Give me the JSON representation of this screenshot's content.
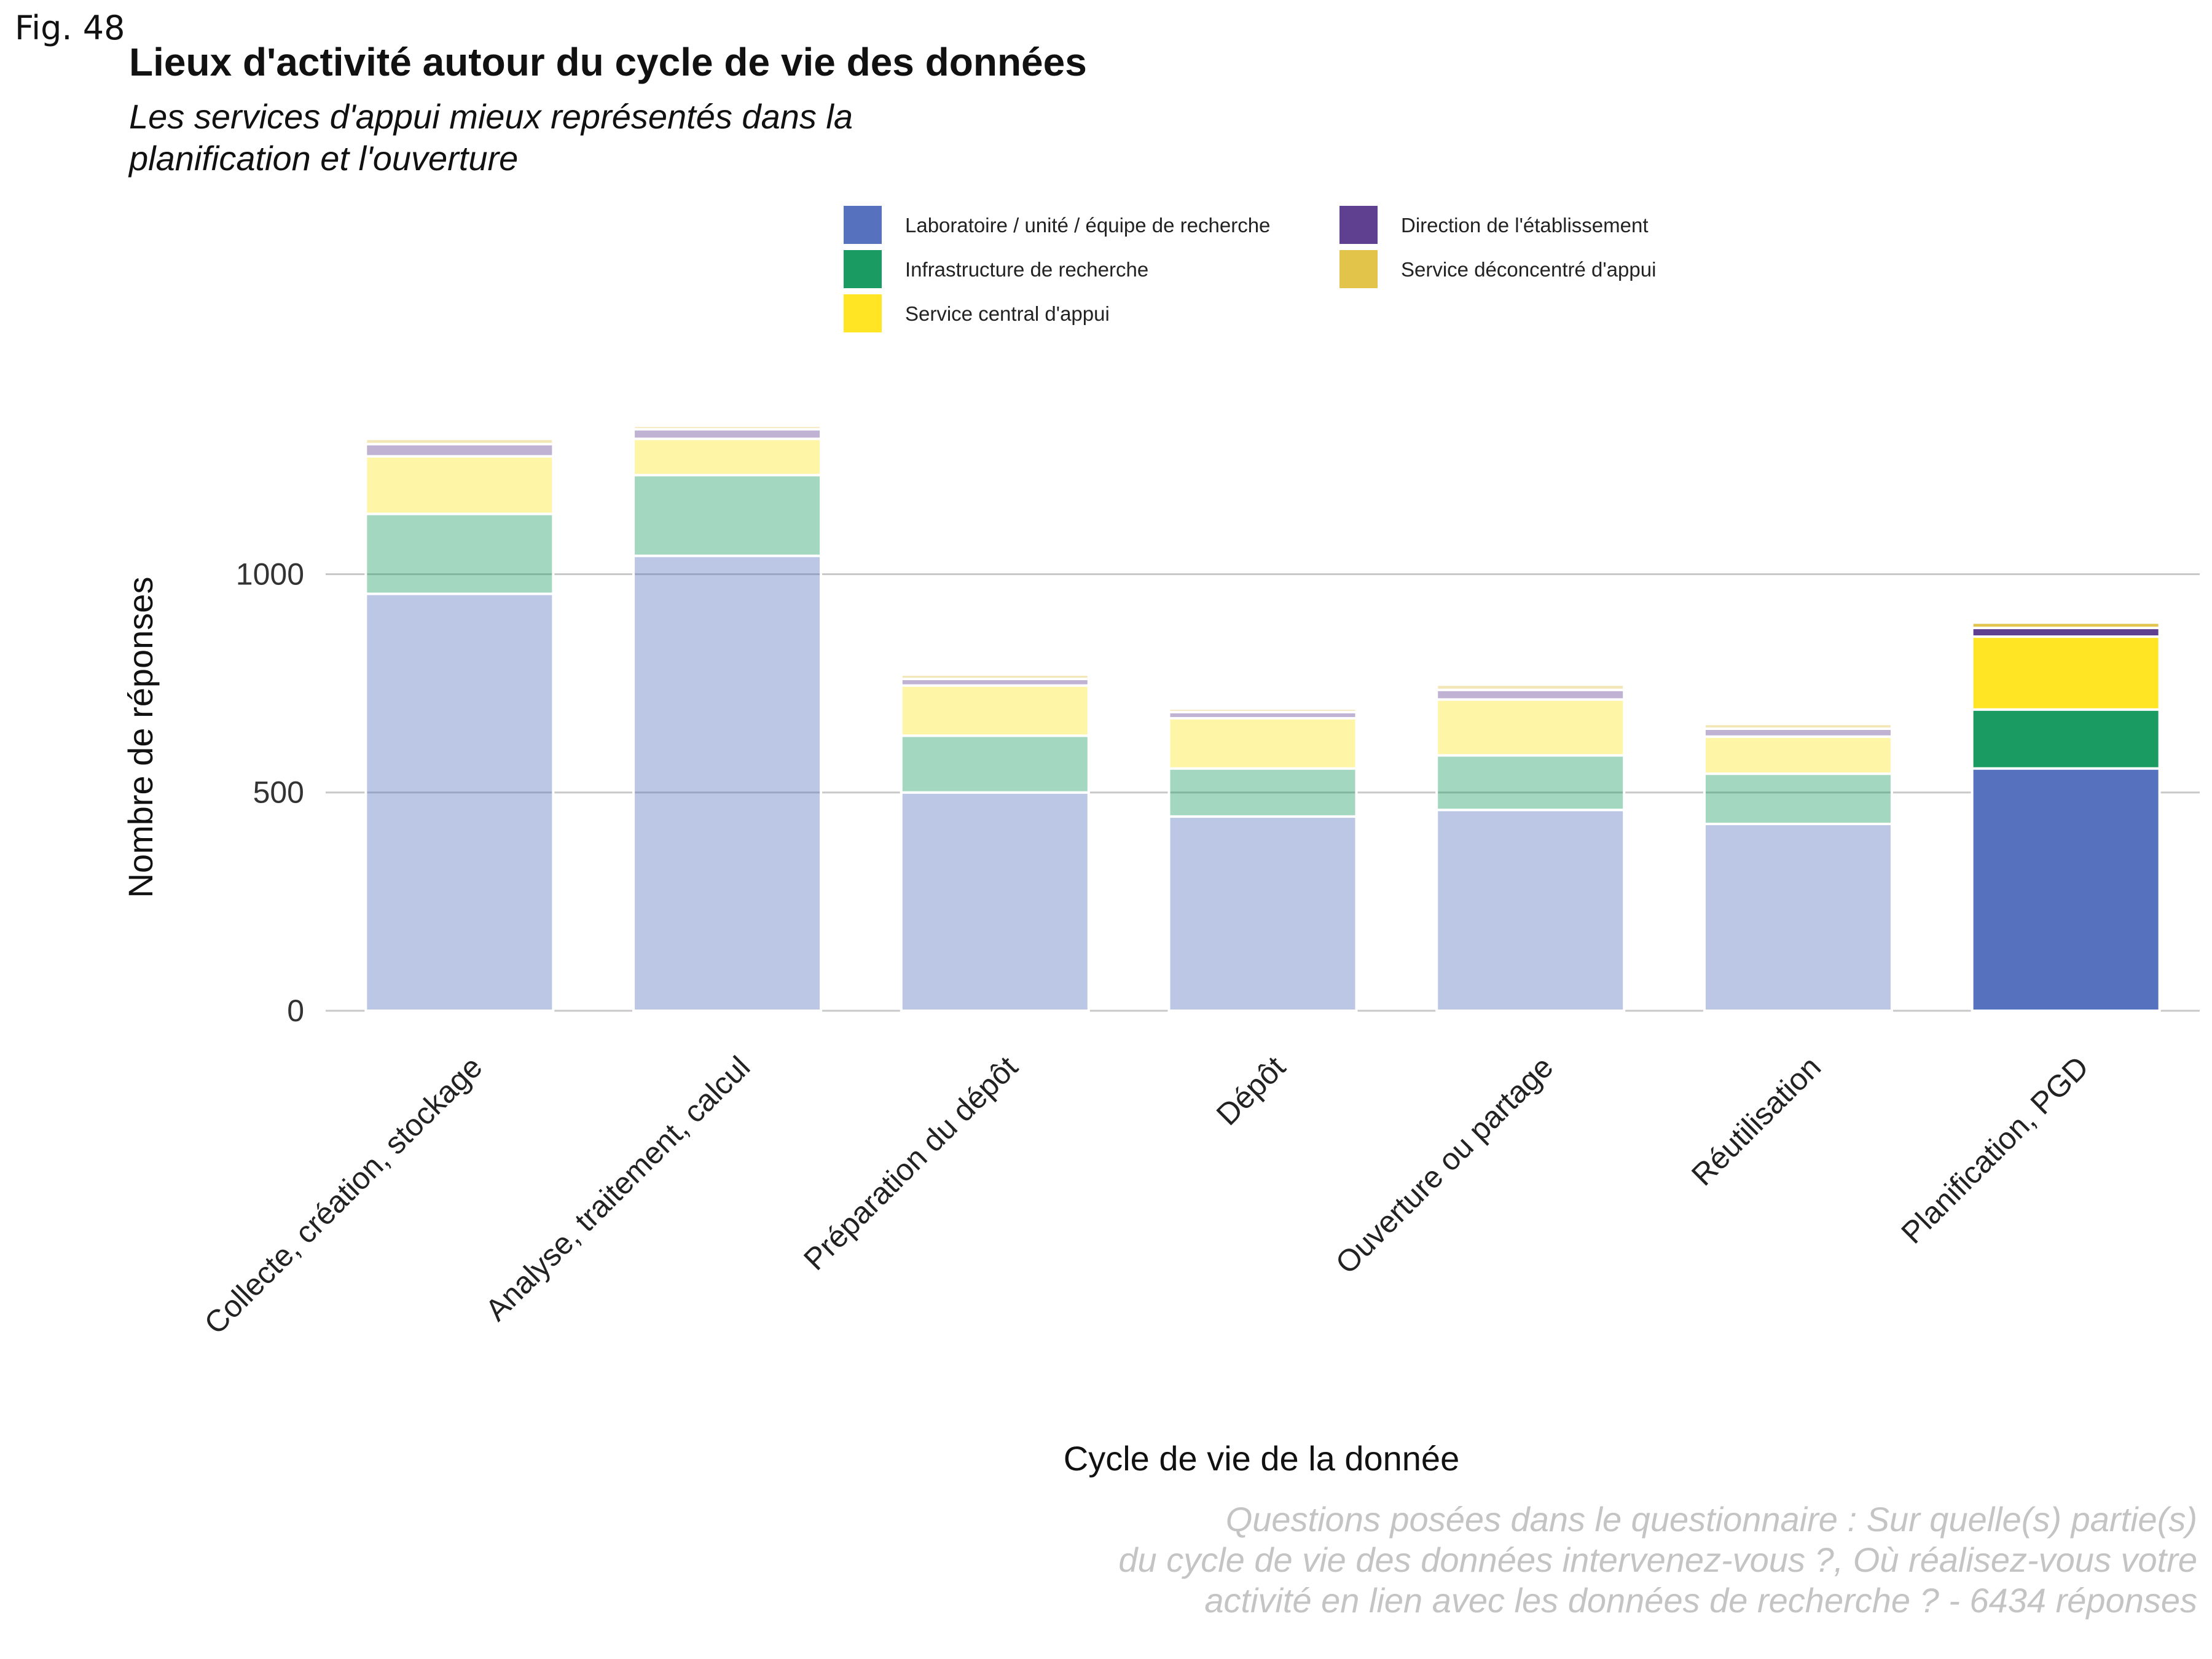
{
  "figure_label": "Fig. 48",
  "chart_data": {
    "type": "bar",
    "stacked": true,
    "title": "Lieux d'activité autour du cycle de vie des données",
    "subtitle": "Les services d'appui mieux représentés dans la\nplanification et l'ouverture",
    "xlabel": "Cycle de vie de la donnée",
    "ylabel": "Nombre de réponses",
    "caption": "Questions posées dans le questionnaire : Sur quelle(s) partie(s)\ndu cycle de vie des données intervenez-vous ?, Où réalisez-vous votre\nactivité en lien avec les données de recherche ? - 6434 réponses",
    "ylim": [
      0,
      1330
    ],
    "yticks": [
      0,
      500,
      1000
    ],
    "grid": "horizontal",
    "legend_position": "top",
    "highlighted_category": "Planification, PGD",
    "categories": [
      "Collecte, création, stockage",
      "Analyse, traitement, calcul",
      "Préparation du dépôt",
      "Dépôt",
      "Ouverture ou partage",
      "Réutilisation",
      "Planification, PGD"
    ],
    "series": [
      {
        "name": "Laboratoire / unité / équipe de recherche",
        "color": "#5672be",
        "values": [
          955,
          1042,
          500,
          445,
          460,
          428,
          555
        ]
      },
      {
        "name": "Infrastructure de recherche",
        "color": "#1a9b62",
        "values": [
          183,
          185,
          130,
          110,
          125,
          115,
          135
        ]
      },
      {
        "name": "Service central d'appui",
        "color": "#ffe523",
        "values": [
          132,
          83,
          115,
          115,
          128,
          85,
          167
        ]
      },
      {
        "name": "Direction de l'établissement",
        "color": "#5f3f8f",
        "values": [
          28,
          22,
          15,
          14,
          22,
          18,
          20
        ]
      },
      {
        "name": "Service déconcentré d'appui",
        "color": "#e3c44a",
        "values": [
          12,
          8,
          10,
          8,
          12,
          11,
          12
        ]
      }
    ],
    "legend_order": [
      "Laboratoire / unité / équipe de recherche",
      "Direction de l'établissement",
      "Infrastructure de recherche",
      "Service déconcentré d'appui",
      "Service central d'appui"
    ]
  }
}
